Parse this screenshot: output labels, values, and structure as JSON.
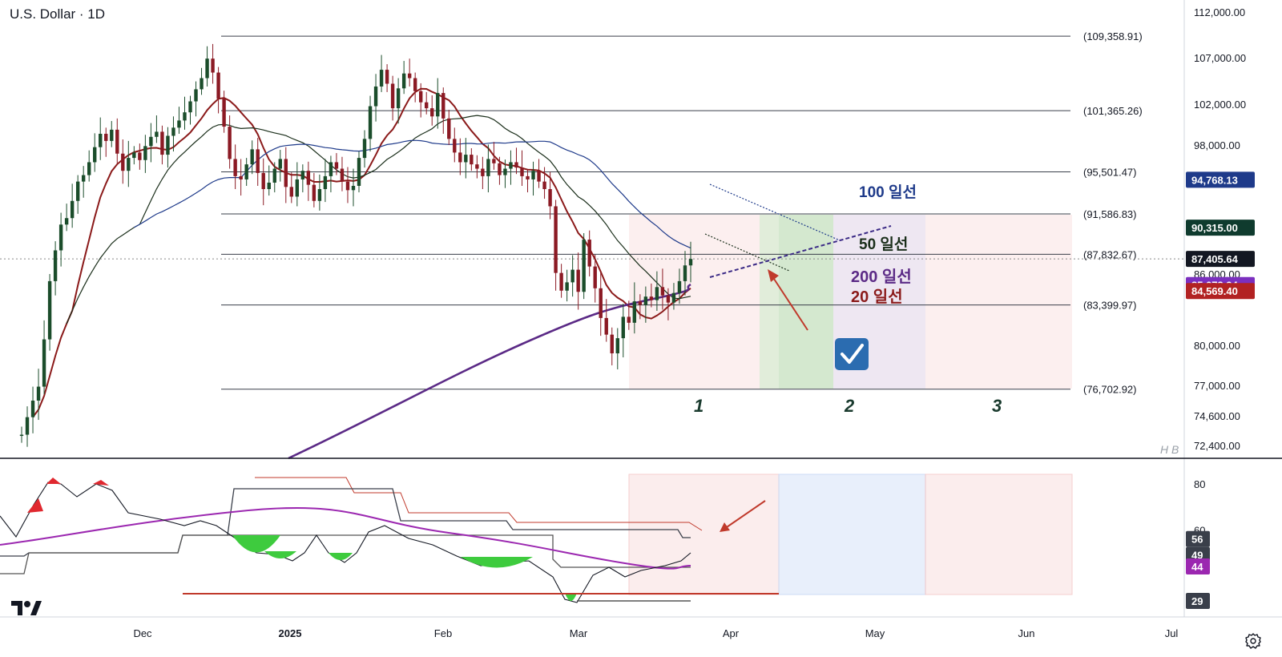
{
  "header": {
    "title": "U.S. Dollar · 1D"
  },
  "watermark": "H B",
  "chart_data": [
    {
      "type": "candlestick",
      "title": "U.S. Dollar · 1D",
      "x_ticks": [
        "Dec",
        "2025",
        "Feb",
        "Mar",
        "Apr",
        "May",
        "Jun",
        "Jul"
      ],
      "y_ticks": [
        "112,000.00",
        "107,000.00",
        "102,000.00",
        "98,000.00",
        "86,000.00",
        "80,000.00",
        "77,000.00",
        "74,600.00",
        "72,400.00"
      ],
      "y_range": [
        72400,
        112000
      ],
      "price_levels": [
        {
          "label": "(109,358.91)",
          "value": 109358.91
        },
        {
          "label": "(101,365.26)",
          "value": 101365.26
        },
        {
          "label": "(95,501.47)",
          "value": 95501.47
        },
        {
          "label": "(91,586.83)",
          "value": 91586.83
        },
        {
          "label": "(87,832.67)",
          "value": 87832.67
        },
        {
          "label": "(83,399.97)",
          "value": 83399.97
        },
        {
          "label": "(76,702.92)",
          "value": 76702.92
        }
      ],
      "price_tags": [
        {
          "label": "94,768.13",
          "value": 94768.13,
          "color": "#1e3a8a"
        },
        {
          "label": "90,315.00",
          "value": 90315.0,
          "color": "#0f3b2e"
        },
        {
          "label": "87,405.64",
          "value": 87405.64,
          "color": "#131722"
        },
        {
          "label": "85,073.94",
          "value": 85073.94,
          "color": "#7b2fbf"
        },
        {
          "label": "84,569.40",
          "value": 84569.4,
          "color": "#b22222"
        }
      ],
      "annotations": [
        {
          "text": "100 일선",
          "color": "#1e3a8a"
        },
        {
          "text": "50  일선",
          "color": "#1a2e1a"
        },
        {
          "text": "200 일선",
          "color": "#5b2a86"
        },
        {
          "text": "20  일선",
          "color": "#8b1a1a"
        },
        {
          "text": "1",
          "color": "#1a3b2e"
        },
        {
          "text": "2",
          "color": "#1a3b2e"
        },
        {
          "text": "3",
          "color": "#1a3b2e"
        }
      ],
      "series": [
        {
          "name": "20 일선",
          "color": "#8b1a1a"
        },
        {
          "name": "50 일선",
          "color": "#1a2e1a"
        },
        {
          "name": "100 일선",
          "color": "#1e3a8a"
        },
        {
          "name": "200 일선",
          "color": "#5b2a86"
        }
      ],
      "candle_closes": [
        73200,
        74500,
        75800,
        76900,
        80500,
        85400,
        88200,
        90600,
        91200,
        92800,
        94600,
        95200,
        96400,
        97800,
        99100,
        98400,
        99500,
        97200,
        95600,
        96800,
        97300,
        96600,
        97900,
        98800,
        99300,
        97100,
        98900,
        99700,
        100400,
        101200,
        102300,
        103600,
        104800,
        106900,
        105400,
        102600,
        99800,
        96700,
        95100,
        94800,
        96200,
        97600,
        95400,
        93900,
        94500,
        95800,
        96700,
        94100,
        93200,
        94800,
        95600,
        94300,
        92800,
        93900,
        95100,
        96400,
        95800,
        94600,
        93800,
        94200,
        96800,
        98600,
        101800,
        103900,
        105700,
        104200,
        101600,
        103700,
        105300,
        104800,
        103400,
        102200,
        101600,
        100800,
        103200,
        100600,
        98600,
        97300,
        96400,
        97100,
        96200,
        95800,
        95100,
        96700,
        96300,
        95200,
        95800,
        96400,
        95900,
        95100,
        94800,
        95600,
        94600,
        93900,
        92300,
        86100,
        84600,
        85300,
        86400,
        84500,
        89200,
        86700,
        84800,
        82300,
        80900,
        79400,
        80600,
        82400,
        81900,
        83700,
        83400,
        84100,
        83800,
        84900,
        84200,
        83600,
        84400,
        85400,
        86800,
        87400
      ],
      "candle_start": 73200
    },
    {
      "type": "line",
      "y_ticks": [
        "80",
        "60",
        "56",
        "49",
        "44",
        "29"
      ],
      "y_range": [
        20,
        90
      ],
      "value_tags": [
        {
          "label": "56",
          "value": 56,
          "color": "#3a3f4a"
        },
        {
          "label": "49",
          "value": 49,
          "color": "#3a3f4a"
        },
        {
          "label": "44",
          "value": 44,
          "color": "#9b27b0"
        },
        {
          "label": "29",
          "value": 29,
          "color": "#3a3f4a"
        }
      ]
    }
  ]
}
